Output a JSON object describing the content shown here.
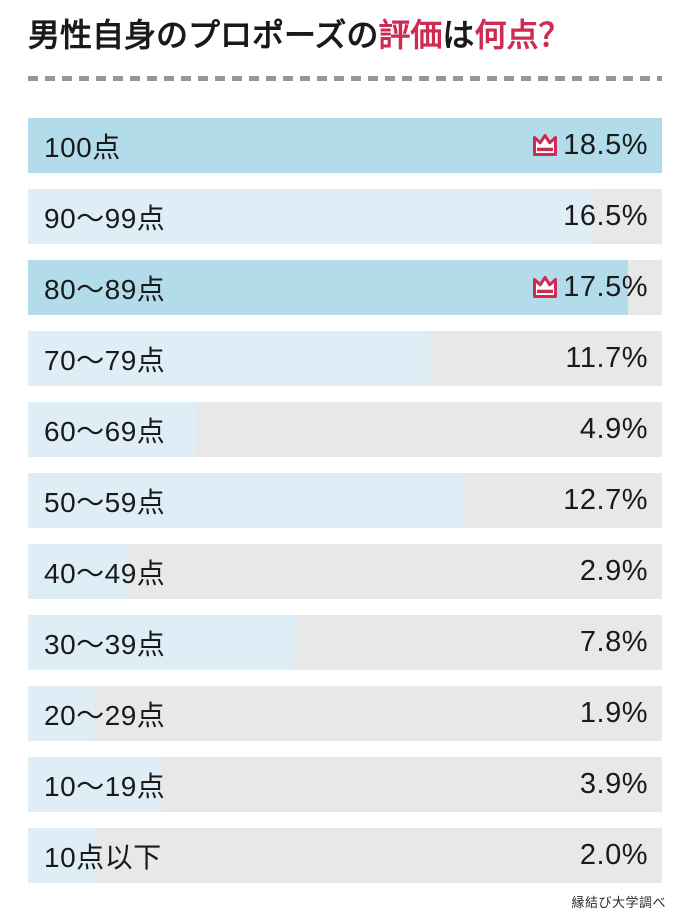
{
  "title": {
    "part1": "男性自身のプロポーズの",
    "part2": "評価",
    "part3": "は",
    "part4": "何点？"
  },
  "colors": {
    "accent_red": "#ce2b52",
    "bar_track_gray": "#e8e8e8",
    "bar_fill_light_blue": "#dfeef6",
    "bar_fill_top_blue": "#b2dcea",
    "dash_gray": "#979797",
    "text_black": "#1a1a1a"
  },
  "chart_data": {
    "type": "bar",
    "orientation": "horizontal",
    "title": "男性自身のプロポーズの評価は何点？",
    "categories": [
      "100点",
      "90〜99点",
      "80〜89点",
      "70〜79点",
      "60〜69点",
      "50〜59点",
      "40〜49点",
      "30〜39点",
      "20〜29点",
      "10〜19点",
      "10点以下"
    ],
    "values": [
      18.5,
      16.5,
      17.5,
      11.7,
      4.9,
      12.7,
      2.9,
      7.8,
      1.9,
      3.9,
      2.0
    ],
    "value_labels": [
      "18.5%",
      "16.5%",
      "17.5%",
      "11.7%",
      "4.9%",
      "12.7%",
      "2.9%",
      "7.8%",
      "1.9%",
      "3.9%",
      "2.0%"
    ],
    "crowned": [
      true,
      false,
      true,
      false,
      false,
      false,
      false,
      false,
      false,
      false,
      false
    ],
    "xlim": [
      0,
      18.5
    ],
    "grid": false,
    "legend": "none",
    "source": "縁結び大学調べ"
  },
  "source": "縁結び大学調べ"
}
